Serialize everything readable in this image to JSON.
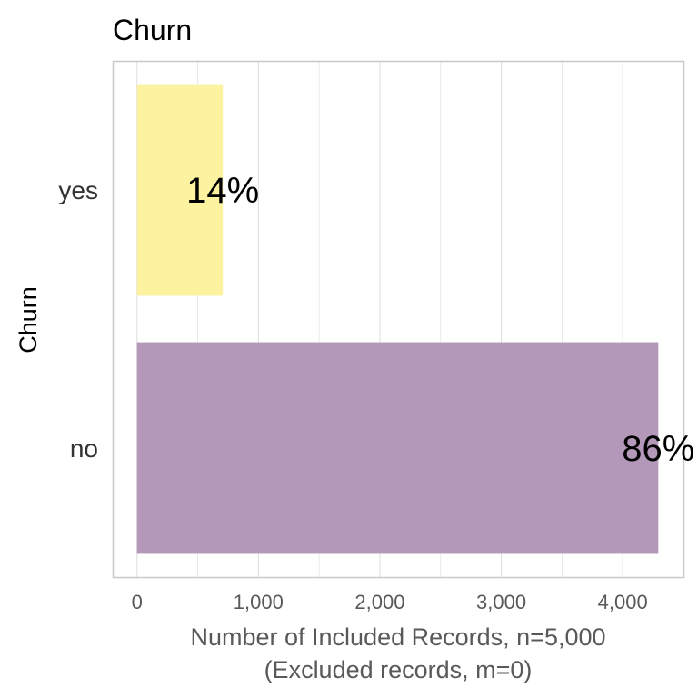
{
  "chart_data": {
    "type": "bar",
    "orientation": "horizontal",
    "title": "Churn",
    "ylabel": "Churn",
    "xlabel_lines": [
      "Number of Included Records, n=5,000",
      "(Excluded records, m=0)"
    ],
    "categories": [
      "yes",
      "no"
    ],
    "values": [
      707,
      4293
    ],
    "data_labels": [
      "14%",
      "86%"
    ],
    "colors": [
      "#fcf2a0",
      "#b398b9"
    ],
    "xlim": [
      -200,
      4500
    ],
    "x_ticks": [
      0,
      1000,
      2000,
      3000,
      4000
    ],
    "x_tick_labels": [
      "0",
      "1,000",
      "2,000",
      "3,000",
      "4,000"
    ],
    "grid": true,
    "legend": "none"
  }
}
